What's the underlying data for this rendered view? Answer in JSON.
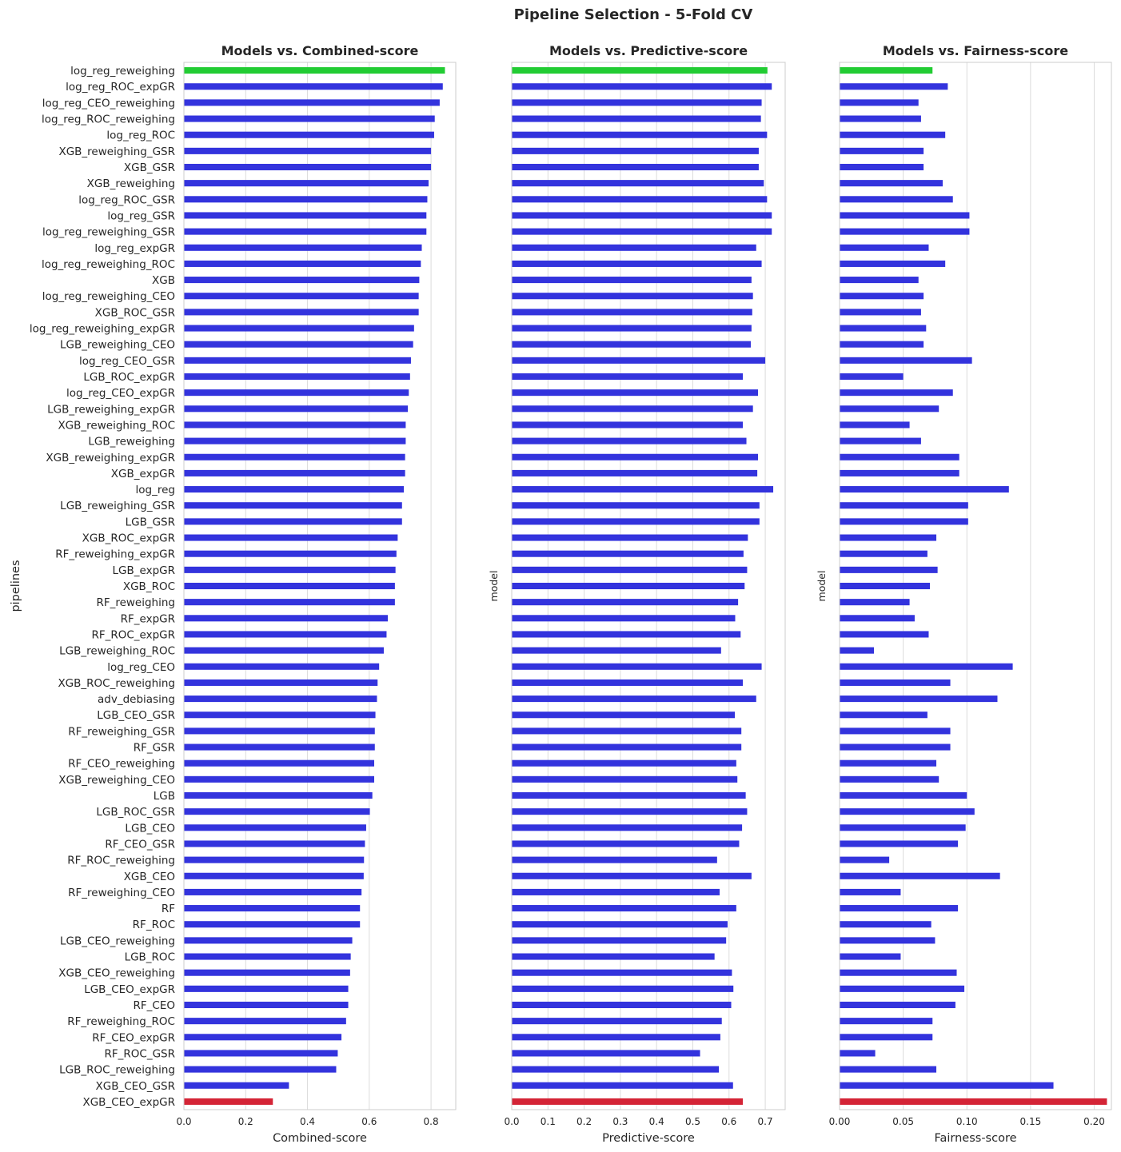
{
  "suptitle": "Pipeline Selection - 5-Fold CV",
  "colors": {
    "default": "#3333dd",
    "best": "#22cc33",
    "worst": "#d42436"
  },
  "categories": [
    "log_reg_reweighing",
    "log_reg_ROC_expGR",
    "log_reg_CEO_reweighing",
    "log_reg_ROC_reweighing",
    "log_reg_ROC",
    "XGB_reweighing_GSR",
    "XGB_GSR",
    "XGB_reweighing",
    "log_reg_ROC_GSR",
    "log_reg_GSR",
    "log_reg_reweighing_GSR",
    "log_reg_expGR",
    "log_reg_reweighing_ROC",
    "XGB",
    "log_reg_reweighing_CEO",
    "XGB_ROC_GSR",
    "log_reg_reweighing_expGR",
    "LGB_reweighing_CEO",
    "log_reg_CEO_GSR",
    "LGB_ROC_expGR",
    "log_reg_CEO_expGR",
    "LGB_reweighing_expGR",
    "XGB_reweighing_ROC",
    "LGB_reweighing",
    "XGB_reweighing_expGR",
    "XGB_expGR",
    "log_reg",
    "LGB_reweighing_GSR",
    "LGB_GSR",
    "XGB_ROC_expGR",
    "RF_reweighing_expGR",
    "LGB_expGR",
    "XGB_ROC",
    "RF_reweighing",
    "RF_expGR",
    "RF_ROC_expGR",
    "LGB_reweighing_ROC",
    "log_reg_CEO",
    "XGB_ROC_reweighing",
    "adv_debiasing",
    "LGB_CEO_GSR",
    "RF_reweighing_GSR",
    "RF_GSR",
    "RF_CEO_reweighing",
    "XGB_reweighing_CEO",
    "LGB",
    "LGB_ROC_GSR",
    "LGB_CEO",
    "RF_CEO_GSR",
    "RF_ROC_reweighing",
    "XGB_CEO",
    "RF_reweighing_CEO",
    "RF",
    "RF_ROC",
    "LGB_CEO_reweighing",
    "LGB_ROC",
    "XGB_CEO_reweighing",
    "LGB_CEO_expGR",
    "RF_CEO",
    "RF_reweighing_ROC",
    "RF_CEO_expGR",
    "RF_ROC_GSR",
    "LGB_ROC_reweighing",
    "XGB_CEO_GSR",
    "XGB_CEO_expGR"
  ],
  "chart_data": [
    {
      "type": "bar",
      "orientation": "horizontal",
      "title": "Models vs. Combined-score",
      "xlabel": "Combined-score",
      "ylabel": "pipelines",
      "xlim": [
        0,
        0.88
      ],
      "xticks": [
        "0.0",
        "0.2",
        "0.4",
        "0.6",
        "0.8"
      ],
      "grid": true,
      "highlight": {
        "best_index": 0,
        "worst_index": 64
      },
      "values": [
        0.845,
        0.838,
        0.828,
        0.812,
        0.81,
        0.8,
        0.8,
        0.792,
        0.788,
        0.785,
        0.785,
        0.77,
        0.767,
        0.762,
        0.76,
        0.76,
        0.745,
        0.742,
        0.735,
        0.732,
        0.728,
        0.725,
        0.718,
        0.718,
        0.716,
        0.716,
        0.712,
        0.706,
        0.706,
        0.692,
        0.688,
        0.685,
        0.683,
        0.683,
        0.66,
        0.656,
        0.647,
        0.632,
        0.627,
        0.625,
        0.62,
        0.618,
        0.618,
        0.616,
        0.616,
        0.61,
        0.602,
        0.59,
        0.586,
        0.583,
        0.582,
        0.575,
        0.57,
        0.57,
        0.545,
        0.54,
        0.538,
        0.532,
        0.532,
        0.525,
        0.51,
        0.498,
        0.493,
        0.34,
        0.288
      ]
    },
    {
      "type": "bar",
      "orientation": "horizontal",
      "title": "Models vs. Predictive-score",
      "xlabel": "Predictive-score",
      "ylabel": "model",
      "xlim": [
        0,
        0.755
      ],
      "xticks": [
        "0.0",
        "0.1",
        "0.2",
        "0.3",
        "0.4",
        "0.5",
        "0.6",
        "0.7"
      ],
      "grid": true,
      "highlight": {
        "best_index": 0,
        "worst_index": 64
      },
      "values": [
        0.706,
        0.718,
        0.69,
        0.688,
        0.705,
        0.682,
        0.682,
        0.696,
        0.705,
        0.718,
        0.718,
        0.675,
        0.69,
        0.662,
        0.666,
        0.664,
        0.662,
        0.66,
        0.7,
        0.638,
        0.68,
        0.666,
        0.638,
        0.648,
        0.68,
        0.678,
        0.722,
        0.684,
        0.684,
        0.652,
        0.64,
        0.65,
        0.643,
        0.625,
        0.617,
        0.632,
        0.578,
        0.69,
        0.638,
        0.675,
        0.616,
        0.634,
        0.634,
        0.62,
        0.623,
        0.646,
        0.65,
        0.636,
        0.628,
        0.567,
        0.662,
        0.574,
        0.62,
        0.596,
        0.592,
        0.56,
        0.608,
        0.612,
        0.606,
        0.58,
        0.576,
        0.52,
        0.572,
        0.611,
        0.638
      ]
    },
    {
      "type": "bar",
      "orientation": "horizontal",
      "title": "Models vs. Fairness-score",
      "xlabel": "Fairness-score",
      "ylabel": "model",
      "xlim": [
        0,
        0.2135
      ],
      "xticks": [
        "0.00",
        "0.05",
        "0.10",
        "0.15",
        "0.20"
      ],
      "grid": true,
      "highlight": {
        "best_index": 0,
        "worst_index": 64
      },
      "values": [
        0.073,
        0.085,
        0.062,
        0.064,
        0.083,
        0.066,
        0.066,
        0.081,
        0.089,
        0.102,
        0.102,
        0.07,
        0.083,
        0.062,
        0.066,
        0.064,
        0.068,
        0.066,
        0.104,
        0.05,
        0.089,
        0.078,
        0.055,
        0.064,
        0.094,
        0.094,
        0.133,
        0.101,
        0.101,
        0.076,
        0.069,
        0.077,
        0.071,
        0.055,
        0.059,
        0.07,
        0.027,
        0.136,
        0.087,
        0.124,
        0.069,
        0.087,
        0.087,
        0.076,
        0.078,
        0.1,
        0.106,
        0.099,
        0.093,
        0.039,
        0.126,
        0.048,
        0.093,
        0.072,
        0.075,
        0.048,
        0.092,
        0.098,
        0.091,
        0.073,
        0.073,
        0.028,
        0.076,
        0.168,
        0.21
      ]
    }
  ]
}
